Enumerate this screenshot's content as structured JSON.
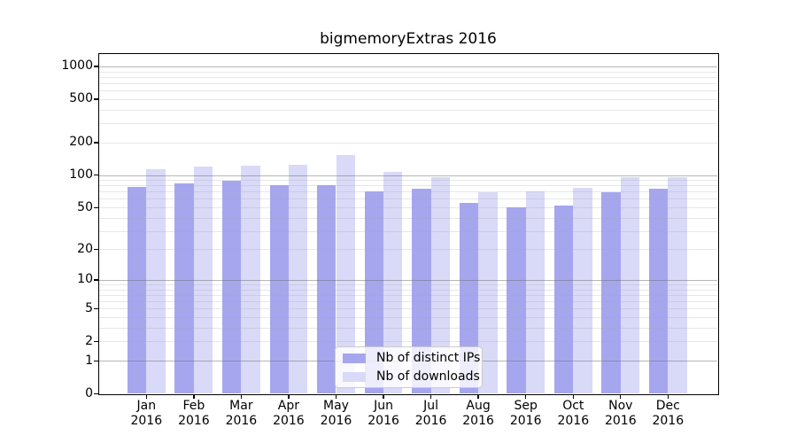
{
  "title": "bigmemoryExtras 2016",
  "legend": {
    "items": [
      {
        "label": "Nb of distinct IPs",
        "color": "#a6a6ef"
      },
      {
        "label": "Nb of downloads",
        "color": "#d9d9f8"
      }
    ]
  },
  "chart_data": {
    "type": "bar",
    "title": "bigmemoryExtras 2016",
    "categories": [
      "Jan 2016",
      "Feb 2016",
      "Mar 2016",
      "Apr 2016",
      "May 2016",
      "Jun 2016",
      "Jul 2016",
      "Aug 2016",
      "Sep 2016",
      "Oct 2016",
      "Nov 2016",
      "Dec 2016"
    ],
    "series": [
      {
        "name": "Nb of distinct IPs",
        "color": "#a6a6ef",
        "values": [
          77,
          84,
          88,
          80,
          81,
          70,
          74,
          55,
          50,
          52,
          69,
          74
        ]
      },
      {
        "name": "Nb of downloads",
        "color": "#d9d9f8",
        "values": [
          114,
          120,
          122,
          124,
          153,
          106,
          96,
          69,
          71,
          76,
          96,
          96
        ]
      }
    ],
    "xlabel": "",
    "ylabel": "",
    "yscale": "log10(value+1)",
    "ylim": [
      0,
      1300
    ],
    "y_ticks": [
      0,
      1,
      2,
      5,
      10,
      20,
      50,
      100,
      200,
      500,
      1000
    ],
    "grid": {
      "shown": true,
      "major_lines_at": [
        1,
        10,
        100,
        1000
      ],
      "minor_multiples_per_decade": [
        2,
        3,
        4,
        5,
        6,
        7,
        8,
        9
      ],
      "major_color": "#b0b0b0",
      "minor_color": "#e4e4e4"
    },
    "legend_position": "lower center"
  }
}
